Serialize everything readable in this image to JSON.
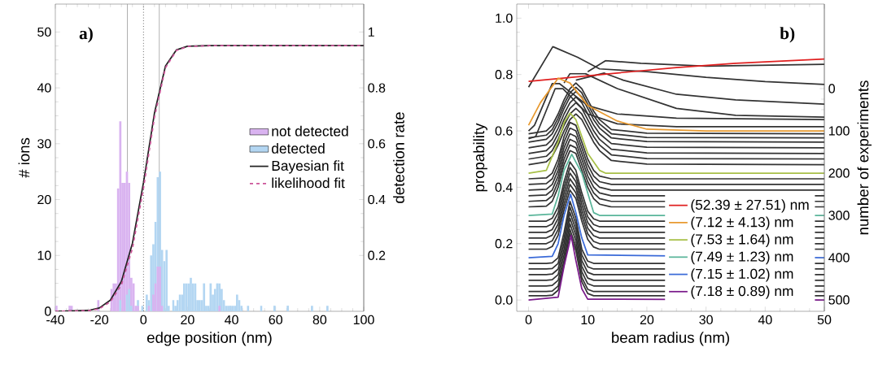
{
  "chart_data": [
    {
      "type": "histogram",
      "xlabel": "edge position (nm)",
      "ylabel": "# ions",
      "y2label": "detection rate",
      "annotations": [
        "a)"
      ],
      "xlim": [
        -40,
        100
      ],
      "xticks": [
        -40,
        -20,
        0,
        20,
        40,
        60,
        80,
        100
      ],
      "ylim": [
        0,
        55
      ],
      "yticks": [
        0,
        10,
        20,
        30,
        40,
        50
      ],
      "y2lim": [
        0,
        1.1
      ],
      "y2ticks": [
        0.2,
        0.4,
        0.6,
        0.8,
        1
      ],
      "legend": "right",
      "bins": [
        -40,
        -39,
        -38,
        -37,
        -36,
        -35,
        -34,
        -33,
        -32,
        -31,
        -30,
        -29,
        -28,
        -27,
        -26,
        -25,
        -24,
        -23,
        -22,
        -21,
        -20,
        -19,
        -18,
        -17,
        -16,
        -15,
        -14,
        -13,
        -12,
        -11,
        -10,
        -9,
        -8,
        -7,
        -6,
        -5,
        -4,
        -3,
        -2,
        -1,
        0,
        1,
        2,
        3,
        4,
        5,
        6,
        7,
        8,
        9,
        10,
        11,
        12,
        13,
        14,
        15,
        16,
        17,
        18,
        19,
        20,
        21,
        22,
        23,
        24,
        25,
        26,
        27,
        28,
        29,
        30,
        31,
        32,
        33,
        34,
        35,
        36,
        37,
        38,
        39,
        40,
        41,
        42,
        43,
        44,
        45,
        46,
        47,
        48,
        49,
        50,
        51,
        52,
        53,
        54,
        55,
        56,
        57,
        58,
        59,
        60,
        61,
        62,
        63,
        64,
        65,
        66,
        67,
        68,
        69,
        70,
        71,
        72,
        73,
        74,
        75,
        76,
        77,
        78,
        79,
        80,
        81,
        82,
        83,
        84
      ],
      "series": [
        {
          "name": "not detected",
          "color": "#d9b3f0",
          "values": [
            1,
            0,
            0,
            0,
            0,
            0,
            1,
            1,
            0,
            0,
            0,
            0,
            0,
            0,
            0,
            0,
            0,
            0,
            0,
            2,
            0,
            0,
            0,
            0,
            0,
            4,
            5,
            5,
            22,
            34,
            23,
            23,
            25,
            23,
            6,
            5,
            1,
            1,
            0,
            0,
            0,
            0,
            1,
            0,
            3,
            5,
            8,
            8,
            1,
            0,
            0,
            0,
            0,
            0,
            0,
            0,
            0,
            0,
            0,
            0,
            0,
            0,
            0,
            0,
            0,
            0,
            0,
            0,
            0,
            0,
            0,
            0,
            0,
            0,
            1,
            0,
            0,
            0,
            0,
            0,
            0,
            0,
            0,
            0,
            0,
            0,
            0,
            0,
            0,
            0,
            0,
            0,
            0,
            0,
            0,
            0,
            0,
            0,
            0,
            0,
            0,
            0,
            0,
            0,
            0,
            0,
            0,
            0,
            0,
            0,
            0,
            0,
            0,
            0,
            0,
            0,
            0,
            0,
            0,
            0,
            0,
            0,
            0,
            0
          ]
        },
        {
          "name": "detected",
          "color": "#b3d6f2",
          "values": [
            0,
            0,
            0,
            0,
            0,
            0,
            0,
            0,
            0,
            0,
            0,
            0,
            0,
            0,
            0,
            0,
            0,
            0,
            0,
            0,
            0,
            0,
            0,
            0,
            0,
            0,
            0,
            0,
            0,
            2,
            0,
            0,
            3,
            4,
            1,
            0,
            0,
            2,
            0,
            1,
            0,
            3,
            2,
            10,
            12,
            16,
            24,
            25,
            11,
            9,
            11,
            1,
            0,
            2,
            1,
            2,
            3,
            3,
            5,
            5,
            5,
            6,
            5,
            5,
            2,
            2,
            2,
            5,
            1,
            1,
            5,
            3,
            4,
            5,
            5,
            4,
            2,
            1,
            1,
            1,
            1,
            1,
            3,
            2,
            1,
            0,
            0,
            1,
            0,
            0,
            0,
            0,
            0,
            1,
            0,
            0,
            0,
            0,
            0,
            1,
            0,
            0,
            0,
            0,
            0,
            1,
            0,
            0,
            0,
            0,
            0,
            0,
            0,
            0,
            0,
            0,
            1,
            0,
            0,
            0,
            0,
            0,
            0,
            1
          ]
        },
        {
          "name": "Bayesian fit",
          "type": "line",
          "axis": "y2",
          "color": "#222222",
          "x": [
            -40,
            -25,
            -20,
            -15,
            -10,
            -5,
            0,
            5,
            10,
            15,
            20,
            30,
            100
          ],
          "values": [
            0,
            0.003,
            0.012,
            0.04,
            0.107,
            0.244,
            0.46,
            0.71,
            0.878,
            0.936,
            0.949,
            0.951,
            0.951
          ]
        },
        {
          "name": "likelihood fit",
          "type": "line",
          "axis": "y2",
          "color": "#cc5599",
          "line_style": "dashed",
          "x": [
            -40,
            -25,
            -20,
            -15,
            -10,
            -5,
            0,
            5,
            10,
            15,
            20,
            30,
            100
          ],
          "values": [
            0,
            0.002,
            0.009,
            0.034,
            0.095,
            0.225,
            0.44,
            0.695,
            0.872,
            0.934,
            0.948,
            0.951,
            0.951
          ]
        }
      ],
      "ref_lines": [
        {
          "axis": "x",
          "value": -7.3,
          "color": "#999999"
        },
        {
          "axis": "x",
          "value": 0,
          "color": "#000000",
          "line_style": "dotted"
        },
        {
          "axis": "x",
          "value": 7.2,
          "color": "#999999"
        }
      ]
    },
    {
      "type": "line",
      "xlabel": "beam radius (nm)",
      "ylabel": "propability",
      "y2label": "number of experiments",
      "annotations": [
        "b)"
      ],
      "xlim": [
        -2,
        50
      ],
      "xticks": [
        0,
        10,
        20,
        30,
        40,
        50
      ],
      "ylim": [
        -0.04,
        1.05
      ],
      "yticks": [
        {
          "value": 0,
          "label": "0.0"
        },
        0.2,
        0.4,
        0.6,
        0.8,
        {
          "value": 1,
          "label": "1.0"
        }
      ],
      "y2lim": [
        527,
        -200
      ],
      "y2ticks": [
        0,
        100,
        200,
        300,
        400,
        500
      ],
      "legend": "bottom right",
      "x": [
        0,
        3,
        4,
        5,
        6,
        7,
        8,
        9,
        10,
        11,
        12,
        14,
        20,
        50
      ],
      "series": [
        {
          "color": "#333333",
          "values": [
            0.015,
            0.015,
            0.017,
            0.035,
            0.125,
            0.235,
            0.175,
            0.065,
            0.023,
            0.015,
            0.015,
            0.015,
            0.015,
            0.015
          ]
        },
        {
          "color": "#333333",
          "values": [
            0.03,
            0.03,
            0.032,
            0.05,
            0.14,
            0.25,
            0.19,
            0.08,
            0.038,
            0.03,
            0.03,
            0.03,
            0.03,
            0.03
          ]
        },
        {
          "color": "#333333",
          "values": [
            0.05,
            0.05,
            0.052,
            0.07,
            0.16,
            0.27,
            0.21,
            0.1,
            0.058,
            0.05,
            0.05,
            0.05,
            0.05,
            0.05
          ]
        },
        {
          "color": "#333333",
          "values": [
            0.07,
            0.07,
            0.072,
            0.09,
            0.18,
            0.29,
            0.23,
            0.12,
            0.078,
            0.07,
            0.07,
            0.07,
            0.07,
            0.07
          ]
        },
        {
          "color": "#333333",
          "values": [
            0.09,
            0.09,
            0.092,
            0.11,
            0.2,
            0.31,
            0.25,
            0.14,
            0.098,
            0.09,
            0.09,
            0.09,
            0.09,
            0.09
          ]
        },
        {
          "color": "#333333",
          "values": [
            0.11,
            0.11,
            0.112,
            0.13,
            0.22,
            0.33,
            0.27,
            0.16,
            0.118,
            0.11,
            0.11,
            0.11,
            0.11,
            0.11
          ]
        },
        {
          "color": "#333333",
          "values": [
            0.13,
            0.13,
            0.132,
            0.15,
            0.24,
            0.35,
            0.29,
            0.18,
            0.138,
            0.13,
            0.13,
            0.13,
            0.13,
            0.13
          ]
        },
        {
          "color": "#333333",
          "values": [
            0.18,
            0.18,
            0.19,
            0.23,
            0.32,
            0.39,
            0.36,
            0.28,
            0.215,
            0.188,
            0.18,
            0.18,
            0.18,
            0.18
          ]
        },
        {
          "color": "#333333",
          "values": [
            0.2,
            0.2,
            0.21,
            0.25,
            0.34,
            0.41,
            0.38,
            0.3,
            0.235,
            0.208,
            0.2,
            0.2,
            0.2,
            0.2
          ]
        },
        {
          "color": "#333333",
          "values": [
            0.22,
            0.22,
            0.23,
            0.27,
            0.36,
            0.43,
            0.4,
            0.32,
            0.255,
            0.228,
            0.22,
            0.22,
            0.22,
            0.22
          ]
        },
        {
          "color": "#333333",
          "values": [
            0.24,
            0.24,
            0.25,
            0.29,
            0.38,
            0.45,
            0.42,
            0.34,
            0.275,
            0.248,
            0.24,
            0.24,
            0.24,
            0.24
          ]
        },
        {
          "color": "#333333",
          "values": [
            0.26,
            0.26,
            0.27,
            0.31,
            0.4,
            0.47,
            0.44,
            0.36,
            0.295,
            0.268,
            0.26,
            0.26,
            0.26,
            0.26
          ]
        },
        {
          "color": "#333333",
          "values": [
            0.28,
            0.28,
            0.29,
            0.33,
            0.42,
            0.49,
            0.46,
            0.38,
            0.315,
            0.288,
            0.28,
            0.28,
            0.28,
            0.28
          ]
        },
        {
          "color": "#333333",
          "values": [
            0.33,
            0.333,
            0.35,
            0.4,
            0.48,
            0.53,
            0.52,
            0.46,
            0.4,
            0.36,
            0.34,
            0.33,
            0.33,
            0.33
          ]
        },
        {
          "color": "#333333",
          "values": [
            0.35,
            0.353,
            0.37,
            0.42,
            0.5,
            0.55,
            0.54,
            0.48,
            0.42,
            0.38,
            0.36,
            0.35,
            0.35,
            0.35
          ]
        },
        {
          "color": "#333333",
          "values": [
            0.37,
            0.373,
            0.39,
            0.44,
            0.52,
            0.57,
            0.56,
            0.5,
            0.44,
            0.4,
            0.38,
            0.37,
            0.37,
            0.37
          ]
        },
        {
          "color": "#333333",
          "values": [
            0.39,
            0.393,
            0.41,
            0.46,
            0.54,
            0.59,
            0.58,
            0.52,
            0.46,
            0.42,
            0.4,
            0.39,
            0.39,
            0.39
          ]
        },
        {
          "color": "#333333",
          "values": [
            0.41,
            0.413,
            0.43,
            0.48,
            0.56,
            0.61,
            0.6,
            0.54,
            0.48,
            0.44,
            0.42,
            0.41,
            0.41,
            0.41
          ]
        },
        {
          "color": "#333333",
          "values": [
            0.43,
            0.433,
            0.45,
            0.5,
            0.58,
            0.63,
            0.62,
            0.56,
            0.5,
            0.46,
            0.44,
            0.43,
            0.43,
            0.43
          ]
        },
        {
          "color": "#333333",
          "values": [
            0.48,
            0.49,
            0.51,
            0.55,
            0.6,
            0.64,
            0.66,
            0.64,
            0.6,
            0.56,
            0.53,
            0.495,
            0.482,
            0.48
          ]
        },
        {
          "color": "#333333",
          "values": [
            0.5,
            0.51,
            0.53,
            0.57,
            0.62,
            0.66,
            0.68,
            0.66,
            0.62,
            0.58,
            0.55,
            0.515,
            0.502,
            0.5
          ]
        },
        {
          "color": "#333333",
          "values": [
            0.52,
            0.53,
            0.55,
            0.59,
            0.64,
            0.68,
            0.7,
            0.68,
            0.64,
            0.6,
            0.57,
            0.535,
            0.522,
            0.52
          ]
        },
        {
          "color": "#333333",
          "values": [
            0.54,
            0.55,
            0.57,
            0.61,
            0.66,
            0.7,
            0.72,
            0.7,
            0.66,
            0.62,
            0.59,
            0.555,
            0.542,
            0.54
          ]
        },
        {
          "color": "#333333",
          "values": [
            0.56,
            0.57,
            0.59,
            0.63,
            0.68,
            0.72,
            0.74,
            0.72,
            0.68,
            0.64,
            0.61,
            0.575,
            0.562,
            0.56
          ]
        },
        {
          "color": "#333333",
          "values": [
            0.575,
            0.585,
            0.605,
            0.645,
            0.695,
            0.735,
            0.755,
            0.735,
            0.695,
            0.655,
            0.625,
            0.59,
            0.577,
            0.575
          ]
        },
        {
          "color": "#333333",
          "values": [
            0.59,
            0.6,
            0.62,
            0.66,
            0.71,
            0.75,
            0.77,
            0.75,
            0.71,
            0.67,
            0.64,
            0.605,
            0.592,
            0.59
          ]
        },
        {
          "color": "#333333",
          "x": [
            0,
            1.2,
            4.5,
            5.8,
            10,
            15,
            25,
            50
          ],
          "values": [
            0.572,
            0.58,
            0.75,
            0.75,
            0.66,
            0.625,
            0.615,
            0.615
          ]
        },
        {
          "color": "#333333",
          "x": [
            0,
            1,
            4,
            5.2,
            10,
            15,
            25,
            50
          ],
          "values": [
            0.6,
            0.62,
            0.768,
            0.768,
            0.69,
            0.66,
            0.645,
            0.64
          ]
        },
        {
          "color": "#333333",
          "x": [
            6,
            7,
            9.6,
            15,
            25,
            35,
            50
          ],
          "values": [
            0.77,
            0.803,
            0.803,
            0.75,
            0.68,
            0.655,
            0.649
          ]
        },
        {
          "color": "#333333",
          "x": [
            8,
            12.8,
            16,
            25,
            35,
            50
          ],
          "values": [
            0.78,
            0.805,
            0.78,
            0.73,
            0.71,
            0.695
          ]
        },
        {
          "color": "#333333",
          "x": [
            10,
            13,
            19,
            30,
            50
          ],
          "values": [
            0.81,
            0.849,
            0.84,
            0.83,
            0.836
          ]
        },
        {
          "color": "#333333",
          "x": [
            0,
            4.1,
            8.3,
            12,
            20,
            30,
            40,
            50
          ],
          "values": [
            0.755,
            0.899,
            0.861,
            0.82,
            0.81,
            0.79,
            0.775,
            0.765
          ]
        },
        {
          "name": "(52.39 ± 27.51) nm",
          "color": "#e02020",
          "x": [
            0,
            25,
            35,
            45,
            50
          ],
          "values": [
            0.776,
            0.825,
            0.84,
            0.85,
            0.855
          ]
        },
        {
          "name": "(7.12 ± 4.13) nm",
          "color": "#e89a30",
          "x": [
            0,
            2,
            5,
            7,
            10,
            15,
            20,
            30,
            50
          ],
          "values": [
            0.62,
            0.7,
            0.787,
            0.77,
            0.69,
            0.635,
            0.606,
            0.6,
            0.6
          ]
        },
        {
          "name": "(7.53 ± 1.64) nm",
          "color": "#a8c048",
          "x": [
            0,
            3,
            5,
            6,
            7,
            8,
            10,
            12,
            13,
            50
          ],
          "values": [
            0.45,
            0.46,
            0.56,
            0.63,
            0.663,
            0.64,
            0.52,
            0.46,
            0.45,
            0.45
          ]
        },
        {
          "name": "(7.49 ± 1.23) nm",
          "color": "#5ab59a",
          "x": [
            0,
            4,
            5,
            6,
            7.3,
            9,
            10,
            11,
            12,
            50
          ],
          "values": [
            0.3,
            0.305,
            0.37,
            0.46,
            0.517,
            0.45,
            0.38,
            0.31,
            0.3,
            0.3
          ]
        },
        {
          "name": "(7.15 ± 1.02) nm",
          "color": "#3a6ad8",
          "x": [
            0,
            4,
            5,
            6,
            7.1,
            8,
            9,
            10,
            50
          ],
          "values": [
            0.15,
            0.155,
            0.2,
            0.3,
            0.375,
            0.31,
            0.22,
            0.16,
            0.15
          ]
        },
        {
          "name": "(7.18 ± 0.89) nm",
          "color": "#7a1a8a",
          "x": [
            0,
            5,
            6,
            7.2,
            8,
            9,
            10,
            50
          ],
          "values": [
            0,
            0.01,
            0.12,
            0.229,
            0.14,
            0.04,
            0.003,
            0
          ]
        }
      ]
    }
  ]
}
